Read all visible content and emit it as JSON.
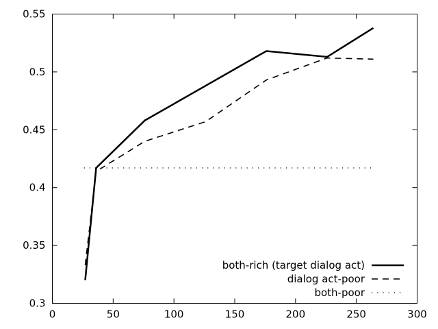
{
  "chart_data": {
    "type": "line",
    "title": "",
    "xlabel": "",
    "ylabel": "",
    "xlim": [
      0,
      300
    ],
    "ylim": [
      0.3,
      0.55
    ],
    "xticks": [
      0,
      50,
      100,
      150,
      200,
      250,
      300
    ],
    "yticks": [
      0.3,
      0.35,
      0.4,
      0.45,
      0.5,
      0.55
    ],
    "xtick_labels": [
      "0",
      "50",
      "100",
      "150",
      "200",
      "250",
      "300"
    ],
    "ytick_labels": [
      "0.3",
      "0.35",
      "0.4",
      "0.45",
      "0.5",
      "0.55"
    ],
    "grid": false,
    "legend_position": "bottom-right",
    "series": [
      {
        "name": "both-rich (target dialog act)",
        "style": "solid",
        "x": [
          27,
          36,
          76,
          176,
          226,
          264
        ],
        "y": [
          0.32,
          0.417,
          0.458,
          0.518,
          0.513,
          0.538
        ]
      },
      {
        "name": "dialog act-poor",
        "style": "dashed",
        "x": [
          27,
          36,
          76,
          126,
          176,
          226,
          264
        ],
        "y": [
          0.333,
          0.414,
          0.44,
          0.457,
          0.493,
          0.512,
          0.511
        ]
      },
      {
        "name": "both-poor",
        "style": "dotted",
        "x": [
          26,
          264
        ],
        "y": [
          0.417,
          0.417
        ]
      }
    ]
  }
}
